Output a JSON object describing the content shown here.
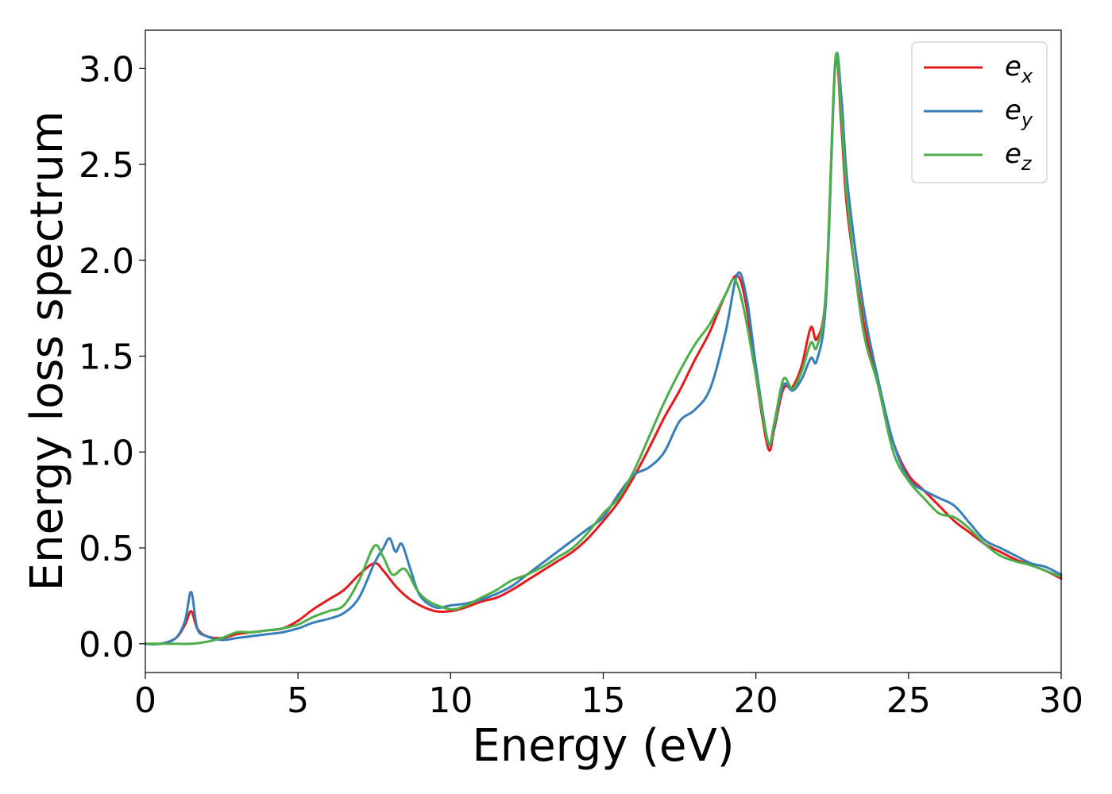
{
  "chart_data": {
    "type": "line",
    "title": "",
    "xlabel": "Energy (eV)",
    "ylabel": "Energy loss spectrum",
    "xlim": [
      0,
      30
    ],
    "ylim": [
      -0.15,
      3.2
    ],
    "xticks": [
      0,
      5,
      10,
      15,
      20,
      25,
      30
    ],
    "xtick_labels": [
      "0",
      "5",
      "10",
      "15",
      "20",
      "25",
      "30"
    ],
    "yticks": [
      0.0,
      0.5,
      1.0,
      1.5,
      2.0,
      2.5,
      3.0
    ],
    "ytick_labels": [
      "0.0",
      "0.5",
      "1.0",
      "1.5",
      "2.0",
      "2.5",
      "3.0"
    ],
    "grid": false,
    "legend": {
      "placement": "top-right"
    },
    "series": [
      {
        "name": "e",
        "subscript": "x",
        "color": "#e41a1c",
        "x": [
          0,
          0.5,
          1.0,
          1.3,
          1.5,
          1.7,
          2.0,
          2.5,
          3.0,
          3.5,
          4.0,
          4.5,
          5.0,
          5.5,
          6.0,
          6.5,
          7.0,
          7.5,
          7.8,
          8.2,
          8.6,
          9.0,
          9.5,
          10.0,
          10.5,
          11.0,
          11.5,
          12.0,
          12.5,
          13.0,
          13.5,
          14.0,
          14.5,
          15.0,
          15.5,
          16.0,
          16.5,
          17.0,
          17.5,
          18.0,
          18.5,
          19.0,
          19.4,
          19.7,
          20.0,
          20.4,
          20.6,
          20.9,
          21.2,
          21.5,
          21.8,
          22.0,
          22.3,
          22.6,
          22.8,
          23.0,
          23.5,
          24.0,
          24.5,
          25.0,
          25.5,
          26.0,
          26.5,
          27.0,
          27.5,
          28.0,
          28.5,
          29.0,
          29.5,
          30.0
        ],
        "y": [
          0.0,
          0.0,
          0.03,
          0.1,
          0.17,
          0.08,
          0.04,
          0.03,
          0.05,
          0.06,
          0.07,
          0.08,
          0.12,
          0.18,
          0.23,
          0.28,
          0.36,
          0.42,
          0.38,
          0.3,
          0.24,
          0.2,
          0.17,
          0.17,
          0.19,
          0.22,
          0.24,
          0.28,
          0.33,
          0.38,
          0.43,
          0.48,
          0.55,
          0.64,
          0.74,
          0.87,
          1.02,
          1.18,
          1.32,
          1.48,
          1.63,
          1.82,
          1.92,
          1.75,
          1.4,
          1.02,
          1.12,
          1.33,
          1.34,
          1.45,
          1.65,
          1.59,
          1.85,
          3.03,
          2.7,
          2.25,
          1.7,
          1.35,
          1.05,
          0.88,
          0.8,
          0.72,
          0.64,
          0.58,
          0.52,
          0.48,
          0.44,
          0.41,
          0.38,
          0.34
        ]
      },
      {
        "name": "e",
        "subscript": "y",
        "color": "#377eb8",
        "x": [
          0,
          0.5,
          1.0,
          1.3,
          1.5,
          1.7,
          2.0,
          2.5,
          3.0,
          3.5,
          4.0,
          4.5,
          5.0,
          5.5,
          6.0,
          6.5,
          7.0,
          7.5,
          7.8,
          8.0,
          8.2,
          8.4,
          8.7,
          9.0,
          9.5,
          10.0,
          10.5,
          11.0,
          11.5,
          12.0,
          12.5,
          13.0,
          13.5,
          14.0,
          14.5,
          15.0,
          15.5,
          16.0,
          16.5,
          17.0,
          17.5,
          18.0,
          18.5,
          19.0,
          19.4,
          19.7,
          20.0,
          20.4,
          20.6,
          20.9,
          21.2,
          21.5,
          21.8,
          22.0,
          22.3,
          22.6,
          22.8,
          23.0,
          23.5,
          24.0,
          24.5,
          25.0,
          25.5,
          26.0,
          26.5,
          27.0,
          27.5,
          28.0,
          28.5,
          29.0,
          29.5,
          30.0
        ],
        "y": [
          0.0,
          0.0,
          0.03,
          0.12,
          0.27,
          0.08,
          0.04,
          0.02,
          0.03,
          0.04,
          0.05,
          0.06,
          0.08,
          0.11,
          0.13,
          0.16,
          0.24,
          0.42,
          0.5,
          0.55,
          0.48,
          0.52,
          0.38,
          0.25,
          0.19,
          0.2,
          0.21,
          0.23,
          0.26,
          0.3,
          0.36,
          0.42,
          0.48,
          0.54,
          0.6,
          0.66,
          0.78,
          0.88,
          0.92,
          1.0,
          1.16,
          1.22,
          1.33,
          1.62,
          1.93,
          1.8,
          1.45,
          1.05,
          1.14,
          1.35,
          1.32,
          1.38,
          1.49,
          1.48,
          1.8,
          3.02,
          2.85,
          2.4,
          1.78,
          1.38,
          1.05,
          0.86,
          0.8,
          0.76,
          0.72,
          0.63,
          0.54,
          0.5,
          0.46,
          0.42,
          0.4,
          0.36
        ]
      },
      {
        "name": "e",
        "subscript": "z",
        "color": "#4daf4a",
        "x": [
          0,
          0.5,
          1.0,
          1.5,
          2.0,
          2.5,
          3.0,
          3.5,
          4.0,
          4.5,
          5.0,
          5.5,
          6.0,
          6.5,
          7.0,
          7.5,
          7.8,
          8.1,
          8.5,
          8.9,
          9.3,
          10.0,
          10.5,
          11.0,
          11.5,
          12.0,
          12.5,
          13.0,
          13.5,
          14.0,
          14.5,
          15.0,
          15.5,
          16.0,
          16.5,
          17.0,
          17.5,
          18.0,
          18.5,
          19.0,
          19.3,
          19.6,
          20.0,
          20.4,
          20.6,
          20.9,
          21.2,
          21.5,
          21.8,
          22.0,
          22.3,
          22.6,
          22.8,
          23.0,
          23.5,
          24.0,
          24.5,
          25.0,
          25.5,
          26.0,
          26.5,
          27.0,
          27.5,
          28.0,
          28.5,
          29.0,
          29.5,
          30.0
        ],
        "y": [
          0.0,
          0.0,
          0.0,
          0.0,
          0.01,
          0.03,
          0.06,
          0.06,
          0.07,
          0.08,
          0.1,
          0.14,
          0.17,
          0.2,
          0.33,
          0.51,
          0.45,
          0.36,
          0.39,
          0.28,
          0.22,
          0.18,
          0.2,
          0.24,
          0.28,
          0.33,
          0.36,
          0.4,
          0.45,
          0.5,
          0.58,
          0.68,
          0.76,
          0.9,
          1.08,
          1.26,
          1.42,
          1.56,
          1.67,
          1.82,
          1.9,
          1.75,
          1.4,
          1.05,
          1.15,
          1.38,
          1.33,
          1.42,
          1.57,
          1.55,
          1.85,
          3.04,
          2.75,
          2.3,
          1.65,
          1.35,
          1.0,
          0.85,
          0.76,
          0.68,
          0.66,
          0.6,
          0.52,
          0.46,
          0.43,
          0.41,
          0.38,
          0.35
        ]
      }
    ]
  }
}
